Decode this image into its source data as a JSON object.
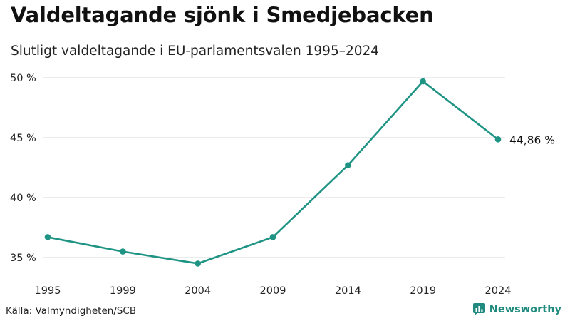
{
  "title": "Valdeltagande sjönk i Smedjebacken",
  "subtitle": "Slutligt valdeltagande i EU-parlamentsvalen 1995–2024",
  "source": "Källa: Valmyndigheten/SCB",
  "brand": {
    "name": "Newsworthy",
    "icon": "newsworthy-logo-icon",
    "color": "#1f8a7d"
  },
  "chart_data": {
    "type": "line",
    "title": "Valdeltagande sjönk i Smedjebacken",
    "subtitle": "Slutligt valdeltagande i EU-parlamentsvalen 1995–2024",
    "xlabel": "",
    "ylabel": "",
    "categories": [
      "1995",
      "1999",
      "2004",
      "2009",
      "2014",
      "2019",
      "2024"
    ],
    "series": [
      {
        "name": "Valdeltagande",
        "color": "#1f9484",
        "values": [
          36.7,
          35.5,
          34.5,
          36.7,
          42.7,
          49.7,
          44.86
        ]
      }
    ],
    "ylim": [
      34.0,
      50.0
    ],
    "yticks": [
      35,
      40,
      45,
      50
    ],
    "ytick_labels": [
      "35 %",
      "40 %",
      "45 %",
      "50 %"
    ],
    "grid": true,
    "end_label": "44,86 %"
  }
}
